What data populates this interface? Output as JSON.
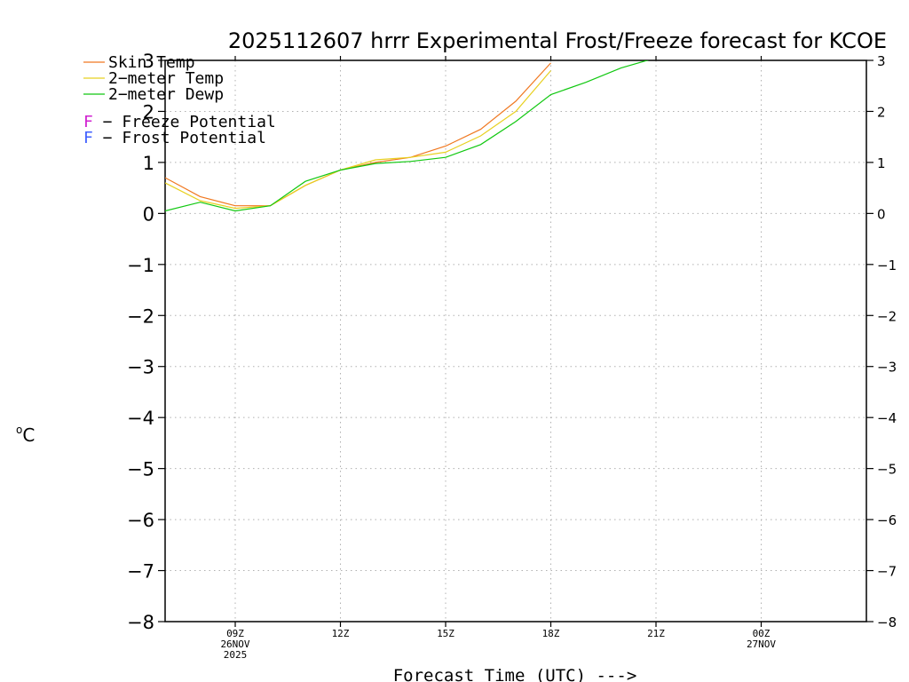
{
  "chart_data": {
    "type": "line",
    "title": "2025112607 hrrr Experimental Frost/Freeze forecast for KCOE",
    "xlabel": "Forecast Time (UTC) --->",
    "ylabel": "°C",
    "ylabel_sup": "o",
    "ylabel_unit": "C",
    "ylim": [
      -8,
      3
    ],
    "xlim": [
      7,
      27
    ],
    "yticks": [
      3,
      2,
      1,
      0,
      -1,
      -2,
      -3,
      -4,
      -5,
      -6,
      -7,
      -8
    ],
    "ytick_labels": [
      "3",
      "2",
      "1",
      "0",
      "−1",
      "−2",
      "−3",
      "−4",
      "−5",
      "−6",
      "−7",
      "−8"
    ],
    "xticks": [
      {
        "hour": 9,
        "lines": [
          "09Z",
          "26NOV",
          "2025"
        ]
      },
      {
        "hour": 12,
        "lines": [
          "12Z"
        ]
      },
      {
        "hour": 15,
        "lines": [
          "15Z"
        ]
      },
      {
        "hour": 18,
        "lines": [
          "18Z"
        ]
      },
      {
        "hour": 21,
        "lines": [
          "21Z"
        ]
      },
      {
        "hour": 24,
        "lines": [
          "00Z",
          "27NOV"
        ]
      }
    ],
    "grid": true,
    "series": [
      {
        "name": "Skin Temp",
        "legend": "Skin Temp",
        "color": "#f07820",
        "x": [
          7,
          8,
          9,
          10,
          11,
          12,
          13,
          14,
          15,
          16,
          17,
          18
        ],
        "y": [
          0.7,
          0.33,
          0.15,
          0.15,
          0.55,
          0.85,
          1.0,
          1.1,
          1.32,
          1.65,
          2.2,
          2.95
        ]
      },
      {
        "name": "2-meter Temp",
        "legend": "2−meter Temp",
        "color": "#e8d020",
        "x": [
          7,
          8,
          9,
          10,
          11,
          12,
          13,
          14,
          15,
          16,
          17,
          18
        ],
        "y": [
          0.6,
          0.25,
          0.1,
          0.15,
          0.55,
          0.85,
          1.05,
          1.1,
          1.2,
          1.52,
          2.0,
          2.8
        ]
      },
      {
        "name": "2-meter Dewp",
        "legend": "2−meter Dewp",
        "color": "#10c810",
        "x": [
          7,
          8,
          9,
          10,
          11,
          12,
          13,
          14,
          15,
          16,
          17,
          18,
          19,
          20,
          21
        ],
        "y": [
          0.05,
          0.22,
          0.05,
          0.15,
          0.63,
          0.85,
          0.98,
          1.02,
          1.1,
          1.35,
          1.8,
          2.33,
          2.57,
          2.85,
          3.05
        ]
      }
    ],
    "legend_extra": [
      {
        "letter": "F",
        "text": " − Freeze Potential",
        "color": "#d020d0"
      },
      {
        "letter": "F",
        "text": " − Frost Potential",
        "color": "#4060ff"
      }
    ]
  }
}
